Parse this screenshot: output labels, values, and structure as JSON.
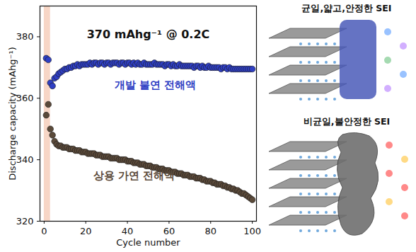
{
  "chart_data": {
    "type": "scatter",
    "x_label": "Cycle number",
    "y_label": "Discharge capacity (mAhg⁻¹)",
    "annotations": [
      "370 mAhg⁻¹ @ 0.2C"
    ],
    "illustration_labels": [
      "균일,얇고,안정한 SEI",
      "비균일,불안정한 SEI"
    ],
    "shaded_region": [
      0,
      3
    ],
    "xlim": [
      -2,
      102
    ],
    "xticks": [
      0,
      20,
      40,
      60,
      80,
      100
    ],
    "ylim": [
      320,
      390
    ],
    "yticks": [
      320,
      340,
      360,
      380
    ],
    "grid": false,
    "marker": "circle",
    "x": [
      1,
      2,
      3,
      4,
      5,
      6,
      7,
      8,
      9,
      10,
      11,
      12,
      13,
      14,
      15,
      16,
      17,
      18,
      19,
      20,
      21,
      22,
      23,
      24,
      25,
      26,
      27,
      28,
      29,
      30,
      31,
      32,
      33,
      34,
      35,
      36,
      37,
      38,
      39,
      40,
      41,
      42,
      43,
      44,
      45,
      46,
      47,
      48,
      49,
      50,
      51,
      52,
      53,
      54,
      55,
      56,
      57,
      58,
      59,
      60,
      61,
      62,
      63,
      64,
      65,
      66,
      67,
      68,
      69,
      70,
      71,
      72,
      73,
      74,
      75,
      76,
      77,
      78,
      79,
      80,
      81,
      82,
      83,
      84,
      85,
      86,
      87,
      88,
      89,
      90,
      91,
      92,
      93,
      94,
      95,
      96,
      97,
      98,
      99,
      100
    ],
    "series": [
      {
        "name": "개발 불연 전해액",
        "color": "#2f3fc4",
        "values": [
          373,
          372.5,
          365,
          364,
          366.5,
          367,
          368,
          368.5,
          369,
          369.5,
          369.5,
          370,
          370,
          370.5,
          370.5,
          371,
          370.5,
          371,
          371,
          371,
          371,
          371.5,
          371,
          371.5,
          371.5,
          371,
          371.5,
          371.5,
          371,
          371.5,
          371.5,
          371,
          371.5,
          371.5,
          371.5,
          371,
          371.5,
          371.5,
          371,
          371.5,
          371.5,
          371,
          371.5,
          371,
          371.5,
          371,
          371,
          371.5,
          371,
          371,
          371,
          371,
          371.5,
          371,
          371,
          371,
          371,
          370.5,
          371,
          371,
          370.5,
          371,
          370.5,
          370.5,
          371,
          370.5,
          370.5,
          370.5,
          370.5,
          370.5,
          370.5,
          370,
          370.5,
          370.5,
          370,
          370.5,
          370,
          370,
          370.5,
          370,
          370,
          370,
          370,
          370,
          369.5,
          370,
          370,
          369.5,
          370,
          369.5,
          369.5,
          369.5,
          369.5,
          369.5,
          369.5,
          369.5,
          369.5,
          369.5,
          369.5,
          369.5
        ]
      },
      {
        "name": "상용 가연 전해액",
        "color": "#5b4a3a",
        "values": [
          354.5,
          358,
          350,
          348,
          346,
          345,
          344.5,
          344.5,
          344,
          344,
          344,
          343.5,
          343.5,
          343.5,
          343,
          343,
          343,
          342.5,
          342.5,
          342.5,
          342,
          342,
          342,
          342,
          341.5,
          341.5,
          341.5,
          341,
          341,
          341,
          341,
          340.5,
          340.5,
          340.5,
          340.5,
          340,
          340,
          340,
          340,
          339.5,
          339.5,
          339.5,
          339,
          339,
          339,
          338.5,
          338.5,
          338.5,
          338,
          338,
          338,
          337.5,
          337.5,
          337.5,
          337,
          337,
          337,
          336.5,
          336.5,
          336.5,
          336,
          336,
          336,
          335.5,
          335.5,
          335.5,
          335,
          335,
          335,
          334.5,
          334.5,
          334.5,
          334,
          334,
          334,
          333.5,
          333.5,
          333,
          333,
          333,
          332.5,
          332.5,
          332,
          332,
          332,
          331.5,
          331.5,
          331,
          331,
          330.5,
          330.5,
          330,
          330,
          329.5,
          329,
          329,
          328.5,
          328,
          327.5,
          327
        ]
      }
    ]
  }
}
